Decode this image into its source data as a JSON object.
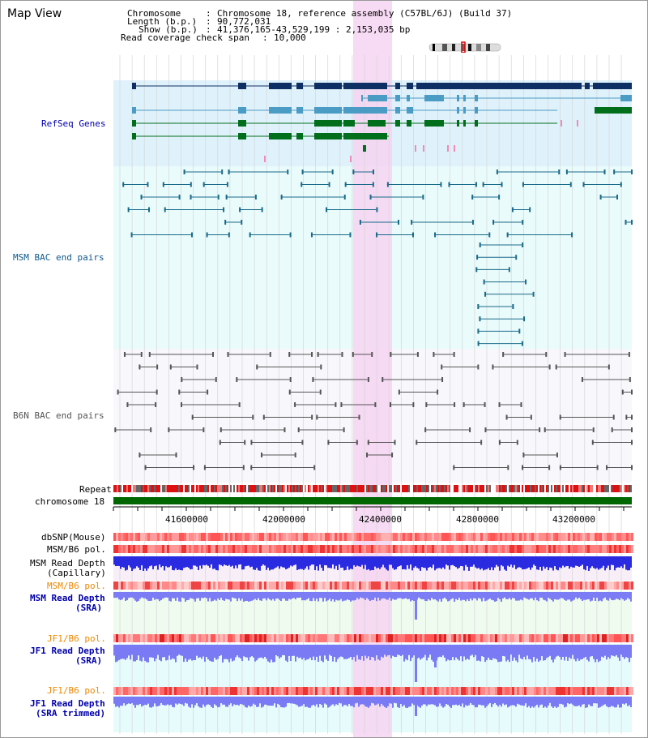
{
  "header": {
    "title": "Map View",
    "chromosome_label": "Chromosome",
    "chromosome_value": "Chromosome 18, reference assembly (C57BL/6J) (Build 37)",
    "length_label": "Length (b.p.)",
    "length_value": "90,772,031",
    "show_label": "Show (b.p.)",
    "show_value": "41,376,165-43,529,199 : 2,153,035 bp",
    "coverage_label": "Read coverage check span",
    "coverage_value": "10,000"
  },
  "tracks": {
    "refseq_label": "RefSeq Genes",
    "msm_bac_label": "MSM BAC end pairs",
    "b6n_bac_label": "B6N BAC end pairs",
    "repeat_label": "Repeat",
    "chrom_label": "chromosome 18",
    "dbsnp_label": "dbSNP(Mouse)",
    "msm_b6_pol_label": "MSM/B6 pol.",
    "msm_depth_cap_label1": "MSM Read Depth",
    "msm_depth_cap_label2": "(Capillary)",
    "msm_b6_pol2_label": "MSM/B6 pol.",
    "msm_depth_sra_label1": "MSM Read Depth",
    "msm_depth_sra_label2": "(SRA)",
    "jf1_pol_label": "JF1/B6 pol.",
    "jf1_depth_label1": "JF1 Read Depth",
    "jf1_depth_label2": "(SRA)",
    "jf1_pol2_label": "JF1/B6 pol.",
    "jf1_trim_label1": "JF1 Read Depth",
    "jf1_trim_label2": "(SRA trimmed)"
  },
  "axis": {
    "ticks": [
      "41600000",
      "42000000",
      "42400000",
      "42800000",
      "43200000"
    ]
  },
  "colors": {
    "refseq_bg": "#dff1fb",
    "bac_bg": "#e9fbfb",
    "highlight": "#f6d4f1",
    "gene_dark": "#0e2f63",
    "gene_light": "#4a9cc4",
    "gene_green": "#006e1a",
    "bac_line": "#1a6a8a",
    "b6n_line": "#555555",
    "chrom_green": "#006600",
    "depth_blue": "#3333dd",
    "label_blue": "#0000aa",
    "label_orange": "#ee8800"
  }
}
